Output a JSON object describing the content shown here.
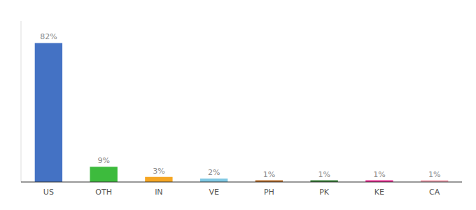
{
  "chart_data": {
    "type": "bar",
    "categories": [
      "US",
      "OTH",
      "IN",
      "VE",
      "PH",
      "PK",
      "KE",
      "CA"
    ],
    "values": [
      82,
      9,
      3,
      2,
      1,
      1,
      1,
      1
    ],
    "value_labels": [
      "82%",
      "9%",
      "3%",
      "2%",
      "1%",
      "1%",
      "1%",
      "1%"
    ],
    "colors": [
      "#4472c4",
      "#3dbb3d",
      "#f5a623",
      "#7ec8e3",
      "#b5651d",
      "#2d7a2d",
      "#e91e8c",
      "#f4a0b0"
    ],
    "ylim": [
      0,
      95
    ],
    "data_labels": true,
    "tick_labels": "x",
    "grid": false
  }
}
